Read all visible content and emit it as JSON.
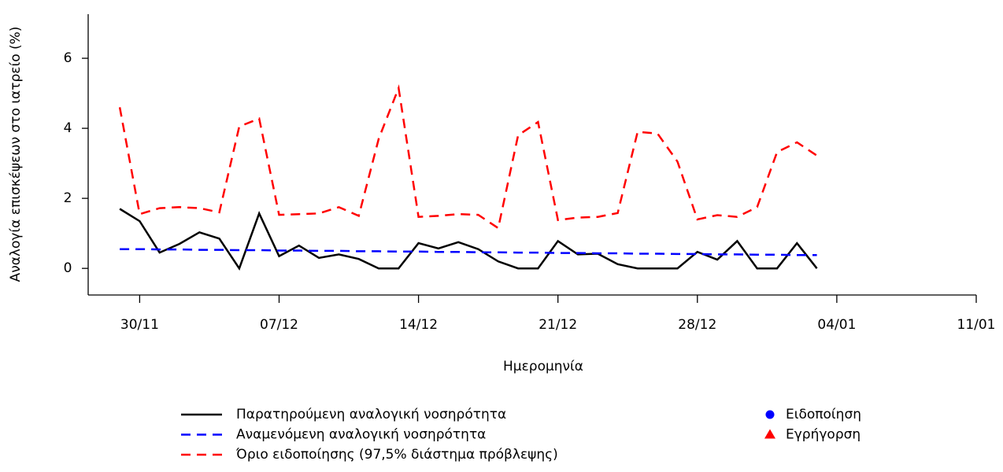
{
  "chart_data": {
    "type": "line",
    "y_label": "Αναλογία επισκέψεων στο ιατρείο (%)",
    "x_label": "Ημερομηνία",
    "x": [
      "29/11",
      "30/11",
      "01/12",
      "02/12",
      "03/12",
      "04/12",
      "05/12",
      "06/12",
      "07/12",
      "08/12",
      "09/12",
      "10/12",
      "11/12",
      "12/12",
      "13/12",
      "14/12",
      "15/12",
      "16/12",
      "17/12",
      "18/12",
      "19/12",
      "20/12",
      "21/12",
      "22/12",
      "23/12",
      "24/12",
      "25/12",
      "26/12",
      "27/12",
      "28/12",
      "29/12",
      "30/12",
      "31/12",
      "01/01",
      "02/01",
      "03/01"
    ],
    "series": [
      {
        "name": "Παρατηρούμενη αναλογική νοσηρότητα",
        "color": "#000000",
        "dashed": false,
        "values": [
          1.7,
          1.35,
          0.45,
          0.7,
          1.03,
          0.85,
          0,
          1.57,
          0.35,
          0.65,
          0.3,
          0.4,
          0.27,
          0,
          0,
          0.72,
          0.57,
          0.75,
          0.55,
          0.2,
          0,
          0,
          0.78,
          0.4,
          0.42,
          0.12,
          0,
          0,
          0,
          0.47,
          0.25,
          0.78,
          0,
          0,
          0.72,
          0
        ]
      },
      {
        "name": "Αναμενόμενη αναλογική νοσηρότητα",
        "color": "#0000ff",
        "dashed": true,
        "values": [
          0.55,
          0.55,
          0.54,
          0.54,
          0.53,
          0.53,
          0.52,
          0.52,
          0.51,
          0.51,
          0.5,
          0.5,
          0.49,
          0.49,
          0.48,
          0.48,
          0.47,
          0.47,
          0.46,
          0.46,
          0.45,
          0.45,
          0.44,
          0.44,
          0.43,
          0.43,
          0.42,
          0.42,
          0.41,
          0.41,
          0.4,
          0.4,
          0.39,
          0.39,
          0.38,
          0.38
        ]
      },
      {
        "name": "Όριο ειδοποίησης (97,5% διάστημα πρόβλεψης)",
        "color": "#ff0000",
        "dashed": true,
        "values": [
          4.6,
          1.55,
          1.72,
          1.75,
          1.72,
          1.6,
          4.05,
          4.28,
          1.53,
          1.55,
          1.57,
          1.75,
          1.5,
          3.7,
          5.15,
          1.47,
          1.5,
          1.55,
          1.53,
          1.15,
          3.8,
          4.18,
          1.38,
          1.45,
          1.47,
          1.58,
          3.9,
          3.85,
          3.05,
          1.4,
          1.52,
          1.47,
          1.75,
          3.32,
          3.6,
          3.22
        ]
      }
    ],
    "markers": [
      {
        "name": "Ειδοποίηση",
        "color": "#0000ff",
        "shape": "circle"
      },
      {
        "name": "Εγρήγορση",
        "color": "#ff0000",
        "shape": "triangle"
      }
    ],
    "xlim": [
      "27/11",
      "11/01"
    ],
    "xticks": [
      "30/11",
      "07/12",
      "14/12",
      "21/12",
      "28/12",
      "04/01",
      "11/01"
    ],
    "ylim": [
      -0.76,
      7.26
    ],
    "yticks": [
      0,
      2,
      4,
      6
    ]
  }
}
